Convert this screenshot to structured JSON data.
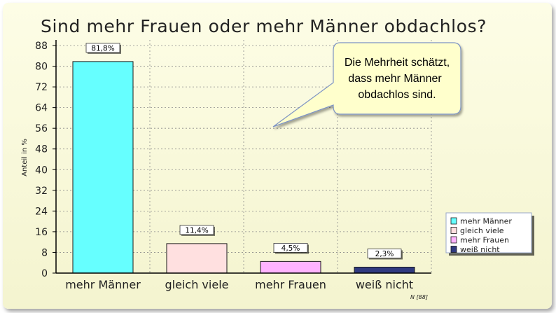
{
  "chart_data": {
    "type": "bar",
    "title": "Sind mehr Frauen oder mehr Männer obdachlos?",
    "ylabel": "Anteil in %",
    "xlabel": "",
    "ylim": [
      0,
      88
    ],
    "yticks": [
      "0",
      "8",
      "16",
      "24",
      "32",
      "40",
      "48",
      "56",
      "64",
      "72",
      "80",
      "88"
    ],
    "grid": true,
    "legend_position": "bottom-right",
    "categories": [
      "mehr Männer",
      "gleich viele",
      "mehr Frauen",
      "weiß nicht"
    ],
    "values": [
      81.8,
      11.4,
      4.5,
      2.3
    ],
    "value_labels": [
      "81,8%",
      "11,4%",
      "4,5%",
      "2,3%"
    ],
    "colors": [
      "#66ffff",
      "#ffe0e0",
      "#ffb3ff",
      "#303a80"
    ],
    "legend": [
      "mehr Männer",
      "gleich viele",
      "mehr Frauen",
      "weiß nicht"
    ],
    "note": "N [88]",
    "annotation": [
      "Die Mehrheit schätzt,",
      "dass mehr Männer",
      "obdachlos sind."
    ]
  }
}
